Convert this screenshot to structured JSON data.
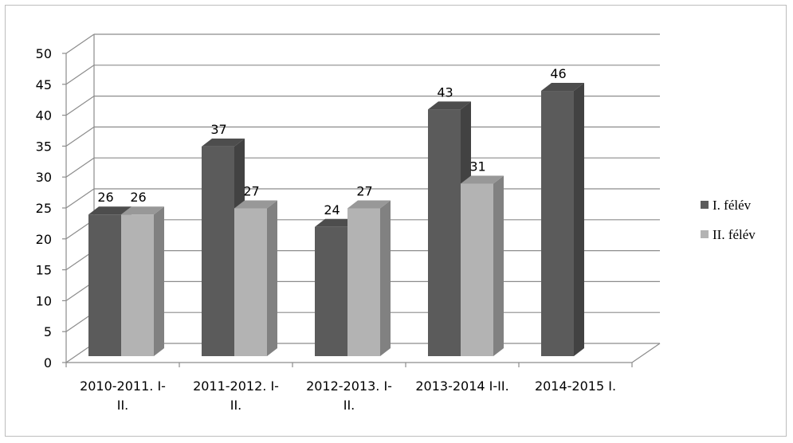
{
  "chart_data": {
    "type": "bar",
    "categories": [
      [
        "2010-2011. I-",
        "II."
      ],
      [
        "2011-2012. I-",
        "II."
      ],
      [
        "2012-2013. I-",
        "II."
      ],
      [
        "2013-2014 I-II."
      ],
      [
        "2014-2015 I."
      ]
    ],
    "series": [
      {
        "name": "I. félév",
        "values": [
          26,
          37,
          24,
          43,
          46
        ],
        "color": "#5b5b5b"
      },
      {
        "name": "II. félév",
        "values": [
          26,
          27,
          27,
          31,
          null
        ],
        "color": "#b3b3b3"
      }
    ],
    "yticks": [
      0,
      5,
      10,
      15,
      20,
      25,
      30,
      35,
      40,
      45,
      50
    ],
    "ylim": [
      0,
      50
    ],
    "grid": true,
    "legend_position": "right",
    "title": "",
    "xlabel": "",
    "ylabel": ""
  }
}
